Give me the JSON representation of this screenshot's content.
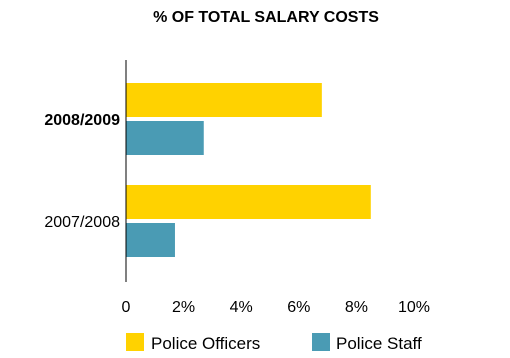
{
  "chart_data": {
    "type": "bar",
    "orientation": "horizontal",
    "title": "% OF TOTAL SALARY COSTS",
    "xlabel": "",
    "ylabel": "",
    "categories": [
      "2008/2009",
      "2007/2008"
    ],
    "category_bold": [
      true,
      false
    ],
    "series": [
      {
        "name": "Police Officers",
        "color": "#ffd200",
        "values": [
          6.8,
          8.5
        ]
      },
      {
        "name": "Police Staff",
        "color": "#4a9bb4",
        "values": [
          2.7,
          1.7
        ]
      }
    ],
    "xlim": [
      0,
      10
    ],
    "x_ticks": [
      {
        "value": 0,
        "label": "0"
      },
      {
        "value": 2,
        "label": "2%"
      },
      {
        "value": 4,
        "label": "4%"
      },
      {
        "value": 6,
        "label": "6%"
      },
      {
        "value": 8,
        "label": "8%"
      },
      {
        "value": 10,
        "label": "10%"
      }
    ],
    "grid": false,
    "legend_position": "bottom"
  }
}
